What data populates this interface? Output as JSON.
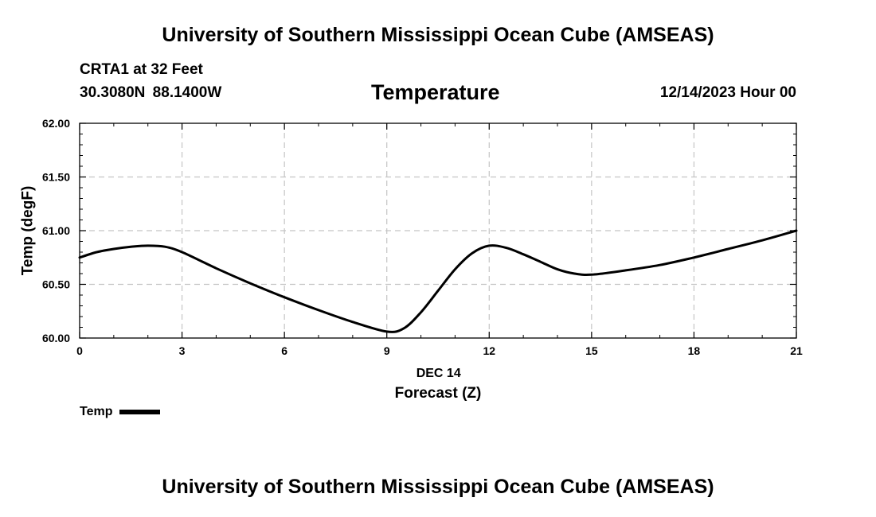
{
  "header": {
    "title": "University of Southern Mississippi Ocean Cube (AMSEAS)",
    "station": "CRTA1 at 32 Feet",
    "coords": "30.3080N  88.1400W",
    "variable": "Temperature",
    "date": "12/14/2023 Hour 00"
  },
  "footer": {
    "title": "University of Southern Mississippi Ocean Cube (AMSEAS)"
  },
  "legend": {
    "label": "Temp"
  },
  "chart_data": {
    "type": "line",
    "title": "Temperature",
    "xlabel": "Forecast (Z)",
    "xsublabel": "DEC 14",
    "ylabel": "Temp (degF)",
    "xlim": [
      0,
      21
    ],
    "ylim": [
      60.0,
      62.0
    ],
    "xticks": [
      0,
      3,
      6,
      9,
      12,
      15,
      18,
      21
    ],
    "xtick_labels": [
      "0",
      "3",
      "6",
      "9",
      "12",
      "15",
      "18",
      "21"
    ],
    "yticks": [
      60.0,
      60.5,
      61.0,
      61.5,
      62.0
    ],
    "ytick_labels": [
      "60.00",
      "60.50",
      "61.00",
      "61.50",
      "62.00"
    ],
    "grid": true,
    "series": [
      {
        "name": "Temp",
        "color": "#000000",
        "x": [
          0,
          0.5,
          1,
          1.5,
          2,
          2.5,
          3,
          4,
          5,
          6,
          7,
          8,
          9,
          9.5,
          10,
          10.5,
          11,
          11.5,
          12,
          12.5,
          13,
          13.5,
          14,
          14.5,
          15,
          16,
          17,
          18,
          19,
          20,
          21
        ],
        "values": [
          60.75,
          60.8,
          60.83,
          60.85,
          60.86,
          60.85,
          60.8,
          60.65,
          60.51,
          60.38,
          60.26,
          60.15,
          60.06,
          60.09,
          60.24,
          60.44,
          60.64,
          60.79,
          60.86,
          60.84,
          60.78,
          60.71,
          60.64,
          60.6,
          60.59,
          60.63,
          60.68,
          60.75,
          60.83,
          60.91,
          61.0
        ]
      }
    ]
  }
}
